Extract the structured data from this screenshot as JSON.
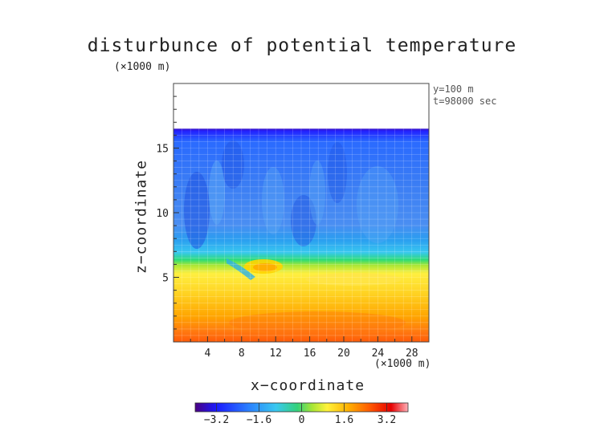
{
  "chart_data": {
    "type": "heatmap",
    "title": "disturbunce of potential temperature",
    "xlabel": "x−coordinate",
    "ylabel": "z−coordinate",
    "x_unit": "(×1000 m)",
    "y_unit": "(×1000 m)",
    "annotations": [
      "y=100 m",
      "t=98000 sec"
    ],
    "xlim": [
      0,
      30
    ],
    "ylim": [
      0,
      20
    ],
    "x_ticks": [
      4,
      8,
      12,
      16,
      20,
      24,
      28
    ],
    "y_ticks": [
      5,
      10,
      15
    ],
    "x_tick_labels": [
      "4",
      "8",
      "12",
      "16",
      "20",
      "24",
      "28"
    ],
    "y_tick_labels": [
      "5",
      "10",
      "15"
    ],
    "grid": true,
    "colorbar": {
      "range": [
        -4,
        4
      ],
      "ticks": [
        -3.2,
        -1.6,
        0,
        1.6,
        3.2
      ],
      "tick_labels": [
        "−3.2",
        "−1.6",
        "0",
        "1.6",
        "3.2"
      ],
      "colors": [
        "#4b0082",
        "#1a1aff",
        "#2a7fff",
        "#39c8f0",
        "#33d27a",
        "#a8e635",
        "#fff23a",
        "#ffb000",
        "#ff5a00",
        "#e60000",
        "#ff9aa2"
      ]
    },
    "field": {
      "top_of_domain": 16.5,
      "layers": [
        {
          "z_range": [
            0,
            1.5
          ],
          "value": 3.0
        },
        {
          "z_range": [
            1.5,
            3.5
          ],
          "value": 2.2
        },
        {
          "z_range": [
            3.5,
            5.5
          ],
          "value": 1.0
        },
        {
          "z_range": [
            5.5,
            7
          ],
          "value": -0.8
        },
        {
          "z_range": [
            7,
            16.5
          ],
          "value": -2.0
        }
      ]
    }
  }
}
